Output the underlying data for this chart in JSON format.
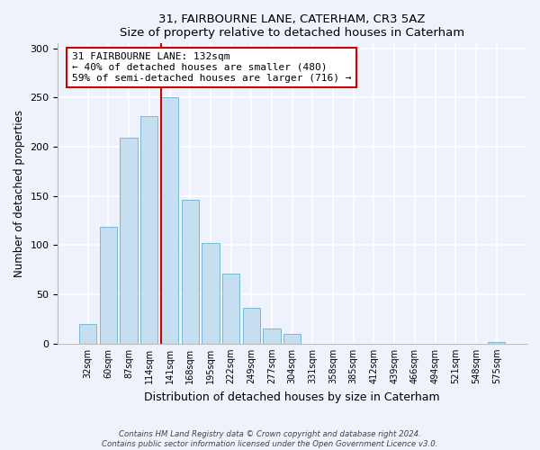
{
  "title": "31, FAIRBOURNE LANE, CATERHAM, CR3 5AZ",
  "subtitle": "Size of property relative to detached houses in Caterham",
  "xlabel": "Distribution of detached houses by size in Caterham",
  "ylabel": "Number of detached properties",
  "bar_labels": [
    "32sqm",
    "60sqm",
    "87sqm",
    "114sqm",
    "141sqm",
    "168sqm",
    "195sqm",
    "222sqm",
    "249sqm",
    "277sqm",
    "304sqm",
    "331sqm",
    "358sqm",
    "385sqm",
    "412sqm",
    "439sqm",
    "466sqm",
    "494sqm",
    "521sqm",
    "548sqm",
    "575sqm"
  ],
  "bar_values": [
    20,
    119,
    209,
    231,
    250,
    146,
    102,
    71,
    36,
    15,
    10,
    0,
    0,
    0,
    0,
    0,
    0,
    0,
    0,
    0,
    2
  ],
  "bar_color": "#c5dff0",
  "bar_edge_color": "#7ab8d4",
  "vline_color": "#cc0000",
  "annotation_text": "31 FAIRBOURNE LANE: 132sqm\n← 40% of detached houses are smaller (480)\n59% of semi-detached houses are larger (716) →",
  "annotation_box_color": "#ffffff",
  "annotation_box_edge": "#cc0000",
  "ylim": [
    0,
    305
  ],
  "yticks": [
    0,
    50,
    100,
    150,
    200,
    250,
    300
  ],
  "footer": "Contains HM Land Registry data © Crown copyright and database right 2024.\nContains public sector information licensed under the Open Government Licence v3.0.",
  "bg_color": "#eef2fb"
}
